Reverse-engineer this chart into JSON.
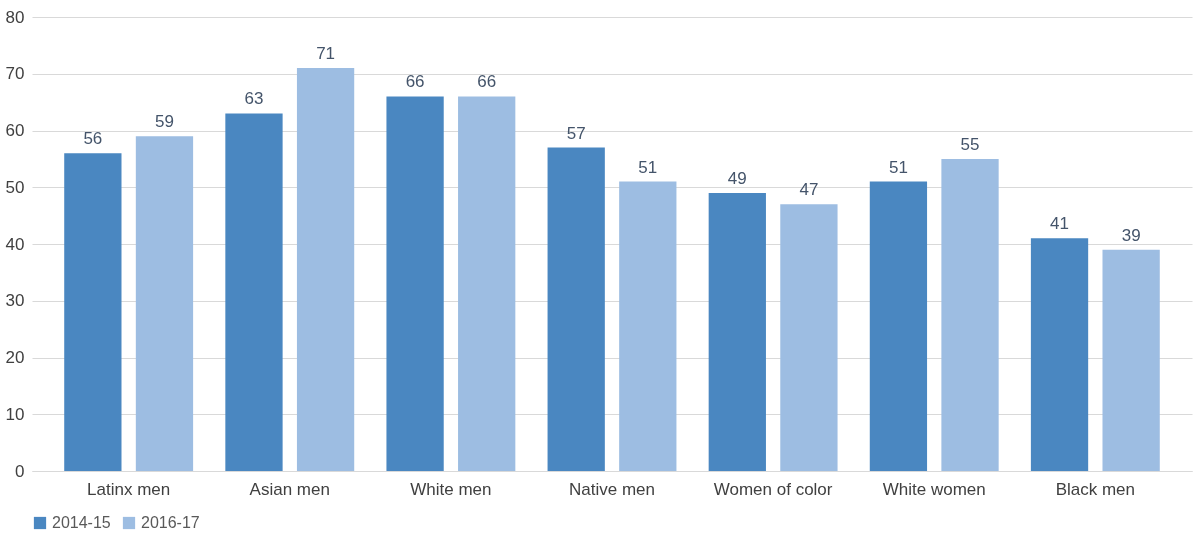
{
  "chart_data": {
    "type": "bar",
    "categories": [
      "Latinx men",
      "Asian men",
      "White men",
      "Native men",
      "Women of color",
      "White women",
      "Black men"
    ],
    "series": [
      {
        "name": "2014-15",
        "color": "#4a87c1",
        "values": [
          56,
          63,
          66,
          57,
          49,
          51,
          41
        ]
      },
      {
        "name": "2016-17",
        "color": "#9dbde2",
        "values": [
          59,
          71,
          66,
          51,
          47,
          55,
          39
        ]
      }
    ],
    "ylim": [
      0,
      80
    ],
    "yticks": [
      0,
      10,
      20,
      30,
      40,
      50,
      60,
      70,
      80
    ],
    "grid": "y",
    "legend": "bottom",
    "data_labels": true
  }
}
